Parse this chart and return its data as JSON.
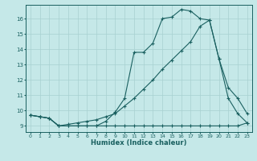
{
  "xlabel": "Humidex (Indice chaleur)",
  "background_color": "#c5e8e8",
  "grid_color": "#a8d0d0",
  "line_color": "#1a6060",
  "xlim": [
    -0.5,
    23.5
  ],
  "ylim": [
    8.6,
    16.9
  ],
  "xticks": [
    0,
    1,
    2,
    3,
    4,
    5,
    6,
    7,
    8,
    9,
    10,
    11,
    12,
    13,
    14,
    15,
    16,
    17,
    18,
    19,
    20,
    21,
    22,
    23
  ],
  "yticks": [
    9,
    10,
    11,
    12,
    13,
    14,
    15,
    16
  ],
  "line1_x": [
    0,
    1,
    2,
    3,
    4,
    5,
    6,
    7,
    8,
    9,
    10,
    11,
    12,
    13,
    14,
    15,
    16,
    17,
    18,
    19,
    20,
    21,
    22,
    23
  ],
  "line1_y": [
    9.7,
    9.6,
    9.5,
    9.0,
    9.0,
    9.0,
    9.0,
    9.0,
    9.3,
    9.9,
    10.8,
    13.8,
    13.8,
    14.4,
    16.0,
    16.1,
    16.6,
    16.5,
    16.0,
    15.9,
    13.4,
    10.8,
    9.8,
    9.2
  ],
  "line2_x": [
    0,
    1,
    2,
    3,
    4,
    5,
    6,
    7,
    8,
    9,
    10,
    11,
    12,
    13,
    14,
    15,
    16,
    17,
    18,
    19,
    20,
    21,
    22,
    23
  ],
  "line2_y": [
    9.7,
    9.6,
    9.5,
    9.0,
    9.1,
    9.2,
    9.3,
    9.4,
    9.6,
    9.8,
    10.3,
    10.8,
    11.4,
    12.0,
    12.7,
    13.3,
    13.9,
    14.5,
    15.5,
    15.9,
    13.4,
    11.5,
    10.8,
    9.8
  ],
  "line3_x": [
    0,
    1,
    2,
    3,
    4,
    5,
    6,
    7,
    8,
    9,
    10,
    11,
    12,
    13,
    14,
    15,
    16,
    17,
    18,
    19,
    20,
    21,
    22,
    23
  ],
  "line3_y": [
    9.7,
    9.6,
    9.5,
    9.0,
    9.0,
    9.0,
    9.0,
    9.0,
    9.0,
    9.0,
    9.0,
    9.0,
    9.0,
    9.0,
    9.0,
    9.0,
    9.0,
    9.0,
    9.0,
    9.0,
    9.0,
    9.0,
    9.0,
    9.2
  ]
}
